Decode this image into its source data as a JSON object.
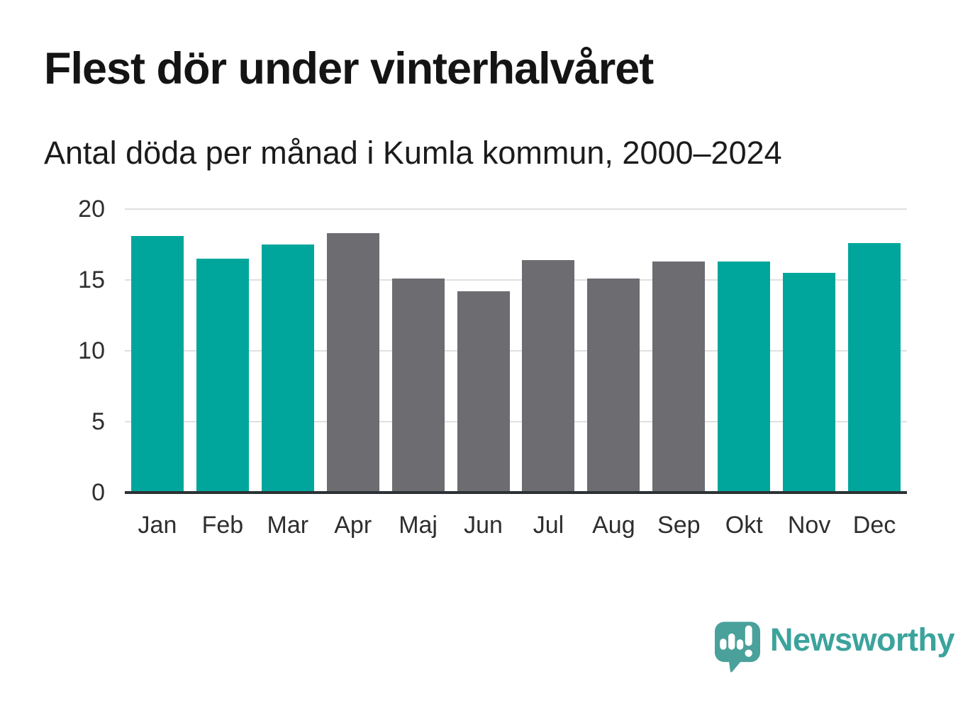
{
  "header": {
    "title": "Flest dör under vinterhalvåret",
    "subtitle": "Antal döda per månad i Kumla kommun, 2000–2024"
  },
  "chart_data": {
    "type": "bar",
    "title": "Flest dör under vinterhalvåret",
    "subtitle": "Antal döda per månad i Kumla kommun, 2000–2024",
    "categories": [
      "Jan",
      "Feb",
      "Mar",
      "Apr",
      "Maj",
      "Jun",
      "Jul",
      "Aug",
      "Sep",
      "Okt",
      "Nov",
      "Dec"
    ],
    "values": [
      18.1,
      16.5,
      17.5,
      18.3,
      15.1,
      14.2,
      16.4,
      15.1,
      16.3,
      16.3,
      15.5,
      17.6
    ],
    "bar_colors": [
      "#00a69c",
      "#00a69c",
      "#00a69c",
      "#6c6c71",
      "#6c6c71",
      "#6c6c71",
      "#6c6c71",
      "#6c6c71",
      "#6c6c71",
      "#00a69c",
      "#00a69c",
      "#00a69c"
    ],
    "xlabel": "",
    "ylabel": "",
    "ylim": [
      0,
      20
    ],
    "yticks": [
      0,
      5,
      10,
      15,
      20
    ],
    "grid": true,
    "legend": false,
    "highlight_color": "#00a69c",
    "muted_color": "#6c6c71"
  },
  "footer": {
    "brand": "Newsworthy",
    "brand_color": "#3ba39c",
    "logo_icon": "speech-bubble-bar-chart-exclamation"
  },
  "colors": {
    "axis_line": "#2b3134",
    "gridline": "#e0e0e0",
    "tick_text": "#2e2e2e",
    "title_text": "#141414"
  }
}
